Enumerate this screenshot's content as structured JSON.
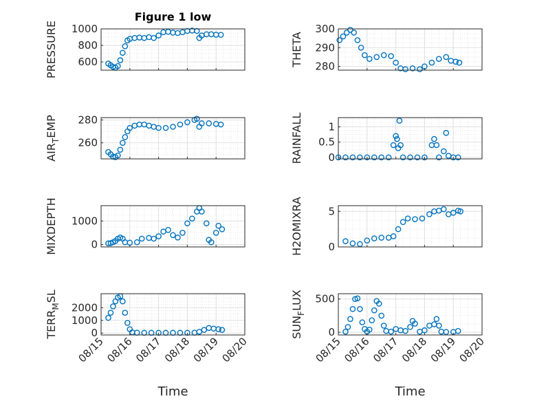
{
  "chart_data": [
    {
      "type": "scatter",
      "title": "Figure 1 low",
      "ylabel": "PRESSURE",
      "xlabel": "",
      "xlim": [
        "08/15",
        "08/20"
      ],
      "ylim": [
        500,
        1000
      ],
      "yticks": [
        600,
        800,
        1000
      ],
      "xticklabels": [],
      "grid": true,
      "marker_color": "#0072BD",
      "points": [
        [
          "08/15 06:00",
          580
        ],
        [
          "08/15 08:00",
          560
        ],
        [
          "08/15 10:00",
          540
        ],
        [
          "08/15 12:00",
          530
        ],
        [
          "08/15 14:00",
          550
        ],
        [
          "08/15 16:00",
          620
        ],
        [
          "08/15 18:00",
          710
        ],
        [
          "08/15 20:00",
          790
        ],
        [
          "08/15 22:00",
          860
        ],
        [
          "08/16 00:00",
          880
        ],
        [
          "08/16 04:00",
          890
        ],
        [
          "08/16 08:00",
          895
        ],
        [
          "08/16 12:00",
          890
        ],
        [
          "08/16 16:00",
          900
        ],
        [
          "08/16 20:00",
          890
        ],
        [
          "08/17 00:00",
          920
        ],
        [
          "08/17 04:00",
          960
        ],
        [
          "08/17 08:00",
          965
        ],
        [
          "08/17 12:00",
          955
        ],
        [
          "08/17 16:00",
          950
        ],
        [
          "08/17 20:00",
          960
        ],
        [
          "08/18 00:00",
          975
        ],
        [
          "08/18 04:00",
          980
        ],
        [
          "08/18 08:00",
          975
        ],
        [
          "08/18 10:00",
          890
        ],
        [
          "08/18 12:00",
          920
        ],
        [
          "08/18 16:00",
          935
        ],
        [
          "08/18 20:00",
          935
        ],
        [
          "08/19 00:00",
          930
        ],
        [
          "08/19 04:00",
          928
        ]
      ]
    },
    {
      "type": "scatter",
      "title": "",
      "ylabel": "THETA",
      "xlabel": "",
      "xlim": [
        "08/15",
        "08/20"
      ],
      "ylim": [
        278,
        300
      ],
      "yticks": [
        280,
        290,
        300
      ],
      "xticklabels": [],
      "grid": true,
      "marker_color": "#0072BD",
      "points": [
        [
          "08/15 01:00",
          294
        ],
        [
          "08/15 04:00",
          296
        ],
        [
          "08/15 07:00",
          298
        ],
        [
          "08/15 10:00",
          299.5
        ],
        [
          "08/15 13:00",
          298
        ],
        [
          "08/15 16:00",
          294
        ],
        [
          "08/15 19:00",
          290
        ],
        [
          "08/15 22:00",
          286
        ],
        [
          "08/16 02:00",
          284
        ],
        [
          "08/16 08:00",
          285
        ],
        [
          "08/16 14:00",
          286
        ],
        [
          "08/16 20:00",
          285.5
        ],
        [
          "08/17 00:00",
          282
        ],
        [
          "08/17 04:00",
          279
        ],
        [
          "08/17 08:00",
          278.5
        ],
        [
          "08/17 14:00",
          279
        ],
        [
          "08/17 20:00",
          278.5
        ],
        [
          "08/18 00:00",
          280
        ],
        [
          "08/18 06:00",
          282
        ],
        [
          "08/18 12:00",
          284
        ],
        [
          "08/18 18:00",
          285
        ],
        [
          "08/18 22:00",
          283
        ],
        [
          "08/19 02:00",
          282.5
        ],
        [
          "08/19 05:00",
          282
        ]
      ]
    },
    {
      "type": "scatter",
      "title": "",
      "ylabel": "AIR_TEMP",
      "xlabel": "",
      "xlim": [
        "08/15",
        "08/20"
      ],
      "ylim": [
        246,
        282
      ],
      "yticks": [
        260,
        280
      ],
      "xticklabels": [],
      "grid": true,
      "marker_color": "#0072BD",
      "points": [
        [
          "08/15 06:00",
          252
        ],
        [
          "08/15 08:00",
          250
        ],
        [
          "08/15 10:00",
          248
        ],
        [
          "08/15 12:00",
          247.5
        ],
        [
          "08/15 14:00",
          249
        ],
        [
          "08/15 16:00",
          254
        ],
        [
          "08/15 18:00",
          260
        ],
        [
          "08/15 20:00",
          265
        ],
        [
          "08/15 22:00",
          270
        ],
        [
          "08/16 00:00",
          273
        ],
        [
          "08/16 04:00",
          275
        ],
        [
          "08/16 08:00",
          276
        ],
        [
          "08/16 12:00",
          276
        ],
        [
          "08/16 16:00",
          275
        ],
        [
          "08/16 20:00",
          274
        ],
        [
          "08/17 00:00",
          273
        ],
        [
          "08/17 06:00",
          273
        ],
        [
          "08/17 12:00",
          274
        ],
        [
          "08/17 18:00",
          276
        ],
        [
          "08/18 00:00",
          278
        ],
        [
          "08/18 06:00",
          280
        ],
        [
          "08/18 08:00",
          281
        ],
        [
          "08/18 10:00",
          274
        ],
        [
          "08/18 12:00",
          277
        ],
        [
          "08/18 18:00",
          277
        ],
        [
          "08/19 00:00",
          276.5
        ],
        [
          "08/19 04:00",
          276
        ]
      ]
    },
    {
      "type": "scatter",
      "title": "",
      "ylabel": "RAINFALL",
      "xlabel": "",
      "xlim": [
        "08/15",
        "08/20"
      ],
      "ylim": [
        -0.05,
        1.3
      ],
      "yticks": [
        0,
        0.5,
        1
      ],
      "xticklabels": [],
      "grid": true,
      "marker_color": "#0072BD",
      "points": [
        [
          "08/15 00:00",
          0
        ],
        [
          "08/15 06:00",
          0
        ],
        [
          "08/15 12:00",
          0
        ],
        [
          "08/15 18:00",
          0
        ],
        [
          "08/16 00:00",
          0
        ],
        [
          "08/16 06:00",
          0
        ],
        [
          "08/16 12:00",
          0
        ],
        [
          "08/16 18:00",
          0
        ],
        [
          "08/16 22:00",
          0.4
        ],
        [
          "08/17 00:00",
          0.7
        ],
        [
          "08/17 01:00",
          0.6
        ],
        [
          "08/17 02:00",
          0.3
        ],
        [
          "08/17 03:00",
          1.2
        ],
        [
          "08/17 04:00",
          0.4
        ],
        [
          "08/17 06:00",
          0
        ],
        [
          "08/17 12:00",
          0
        ],
        [
          "08/17 18:00",
          0
        ],
        [
          "08/18 00:00",
          0
        ],
        [
          "08/18 06:00",
          0.4
        ],
        [
          "08/18 08:00",
          0.6
        ],
        [
          "08/18 10:00",
          0.4
        ],
        [
          "08/18 12:00",
          0
        ],
        [
          "08/18 16:00",
          0.2
        ],
        [
          "08/18 18:00",
          0.8
        ],
        [
          "08/18 20:00",
          0.05
        ],
        [
          "08/19 00:00",
          0
        ],
        [
          "08/19 04:00",
          0
        ]
      ]
    },
    {
      "type": "scatter",
      "title": "",
      "ylabel": "MIXDEPTH",
      "xlabel": "",
      "xlim": [
        "08/15",
        "08/20"
      ],
      "ylim": [
        -100,
        1650
      ],
      "yticks": [
        0,
        1000
      ],
      "xticklabels": [],
      "grid": true,
      "marker_color": "#0072BD",
      "points": [
        [
          "08/15 06:00",
          50
        ],
        [
          "08/15 08:00",
          60
        ],
        [
          "08/15 10:00",
          100
        ],
        [
          "08/15 12:00",
          150
        ],
        [
          "08/15 14:00",
          250
        ],
        [
          "08/15 16:00",
          300
        ],
        [
          "08/15 18:00",
          250
        ],
        [
          "08/15 20:00",
          100
        ],
        [
          "08/16 00:00",
          80
        ],
        [
          "08/16 06:00",
          100
        ],
        [
          "08/16 10:00",
          250
        ],
        [
          "08/16 16:00",
          280
        ],
        [
          "08/16 20:00",
          250
        ],
        [
          "08/17 00:00",
          350
        ],
        [
          "08/17 04:00",
          550
        ],
        [
          "08/17 08:00",
          620
        ],
        [
          "08/17 12:00",
          400
        ],
        [
          "08/17 16:00",
          300
        ],
        [
          "08/17 20:00",
          500
        ],
        [
          "08/18 00:00",
          900
        ],
        [
          "08/18 04:00",
          1100
        ],
        [
          "08/18 08:00",
          1400
        ],
        [
          "08/18 10:00",
          1550
        ],
        [
          "08/18 12:00",
          1400
        ],
        [
          "08/18 16:00",
          900
        ],
        [
          "08/18 18:00",
          200
        ],
        [
          "08/18 20:00",
          100
        ],
        [
          "08/19 00:00",
          500
        ],
        [
          "08/19 02:00",
          800
        ],
        [
          "08/19 05:00",
          650
        ]
      ]
    },
    {
      "type": "scatter",
      "title": "",
      "ylabel": "H2OMIXRA",
      "xlabel": "",
      "xlim": [
        "08/15",
        "08/20"
      ],
      "ylim": [
        0,
        5.8
      ],
      "yticks": [
        0,
        5
      ],
      "xticklabels": [],
      "grid": true,
      "marker_color": "#0072BD",
      "points": [
        [
          "08/15 06:00",
          0.8
        ],
        [
          "08/15 12:00",
          0.5
        ],
        [
          "08/15 18:00",
          0.4
        ],
        [
          "08/16 00:00",
          0.9
        ],
        [
          "08/16 06:00",
          1.2
        ],
        [
          "08/16 12:00",
          1.3
        ],
        [
          "08/16 18:00",
          1.3
        ],
        [
          "08/16 22:00",
          1.5
        ],
        [
          "08/17 02:00",
          2.5
        ],
        [
          "08/17 06:00",
          3.5
        ],
        [
          "08/17 10:00",
          4.0
        ],
        [
          "08/17 16:00",
          3.9
        ],
        [
          "08/17 22:00",
          4.0
        ],
        [
          "08/18 04:00",
          4.6
        ],
        [
          "08/18 08:00",
          5.0
        ],
        [
          "08/18 12:00",
          5.1
        ],
        [
          "08/18 16:00",
          5.3
        ],
        [
          "08/18 20:00",
          4.6
        ],
        [
          "08/19 00:00",
          4.8
        ],
        [
          "08/19 04:00",
          5.1
        ],
        [
          "08/19 06:00",
          5.0
        ]
      ]
    },
    {
      "type": "scatter",
      "title": "",
      "ylabel": "TERR_MSL",
      "xlabel": "Time",
      "xlim": [
        "08/15",
        "08/20"
      ],
      "ylim": [
        -150,
        3100
      ],
      "yticks": [
        0,
        1000,
        2000
      ],
      "xticklabels": [
        "08/15",
        "08/16",
        "08/17",
        "08/18",
        "08/19",
        "08/20"
      ],
      "grid": true,
      "marker_color": "#0072BD",
      "points": [
        [
          "08/15 06:00",
          1200
        ],
        [
          "08/15 08:00",
          1600
        ],
        [
          "08/15 10:00",
          2100
        ],
        [
          "08/15 12:00",
          2500
        ],
        [
          "08/15 14:00",
          2800
        ],
        [
          "08/15 16:00",
          2900
        ],
        [
          "08/15 18:00",
          2500
        ],
        [
          "08/15 20:00",
          1600
        ],
        [
          "08/15 22:00",
          800
        ],
        [
          "08/16 00:00",
          300
        ],
        [
          "08/16 02:00",
          60
        ],
        [
          "08/16 06:00",
          30
        ],
        [
          "08/16 12:00",
          20
        ],
        [
          "08/16 18:00",
          20
        ],
        [
          "08/17 00:00",
          20
        ],
        [
          "08/17 06:00",
          20
        ],
        [
          "08/17 12:00",
          20
        ],
        [
          "08/17 18:00",
          20
        ],
        [
          "08/18 00:00",
          20
        ],
        [
          "08/18 06:00",
          30
        ],
        [
          "08/18 10:00",
          100
        ],
        [
          "08/18 14:00",
          250
        ],
        [
          "08/18 18:00",
          400
        ],
        [
          "08/18 22:00",
          350
        ],
        [
          "08/19 02:00",
          300
        ],
        [
          "08/19 05:00",
          250
        ]
      ]
    },
    {
      "type": "scatter",
      "title": "",
      "ylabel": "SUN_FLUX",
      "xlabel": "Time",
      "xlim": [
        "08/15",
        "08/20"
      ],
      "ylim": [
        -40,
        580
      ],
      "yticks": [
        0,
        500
      ],
      "xticklabels": [
        "08/15",
        "08/16",
        "08/17",
        "08/18",
        "08/19",
        "08/20"
      ],
      "grid": true,
      "marker_color": "#0072BD",
      "points": [
        [
          "08/15 06:00",
          10
        ],
        [
          "08/15 08:00",
          80
        ],
        [
          "08/15 10:00",
          200
        ],
        [
          "08/15 12:00",
          350
        ],
        [
          "08/15 14:00",
          500
        ],
        [
          "08/15 16:00",
          510
        ],
        [
          "08/15 18:00",
          350
        ],
        [
          "08/15 20:00",
          150
        ],
        [
          "08/15 22:00",
          50
        ],
        [
          "08/16 00:00",
          10
        ],
        [
          "08/16 02:00",
          40
        ],
        [
          "08/16 04:00",
          180
        ],
        [
          "08/16 06:00",
          330
        ],
        [
          "08/16 08:00",
          470
        ],
        [
          "08/16 10:00",
          430
        ],
        [
          "08/16 12:00",
          250
        ],
        [
          "08/16 14:00",
          100
        ],
        [
          "08/16 16:00",
          20
        ],
        [
          "08/16 20:00",
          10
        ],
        [
          "08/17 00:00",
          50
        ],
        [
          "08/17 04:00",
          30
        ],
        [
          "08/17 08:00",
          20
        ],
        [
          "08/17 12:00",
          80
        ],
        [
          "08/17 14:00",
          170
        ],
        [
          "08/17 16:00",
          130
        ],
        [
          "08/17 20:00",
          10
        ],
        [
          "08/18 00:00",
          30
        ],
        [
          "08/18 04:00",
          100
        ],
        [
          "08/18 08:00",
          120
        ],
        [
          "08/18 10:00",
          200
        ],
        [
          "08/18 12:00",
          100
        ],
        [
          "08/18 14:00",
          10
        ],
        [
          "08/18 18:00",
          5
        ],
        [
          "08/19 00:00",
          5
        ],
        [
          "08/19 04:00",
          20
        ]
      ]
    }
  ]
}
